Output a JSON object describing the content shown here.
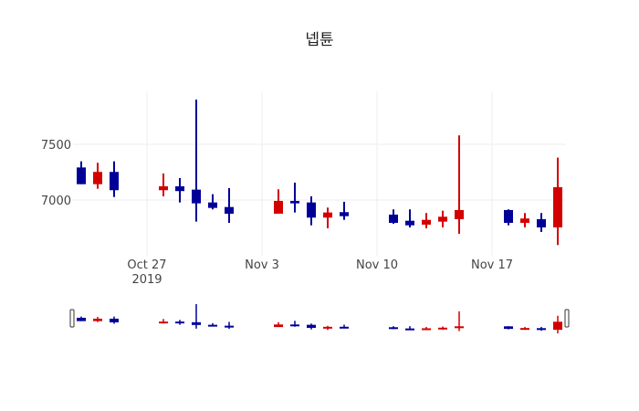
{
  "chart_data": {
    "type": "candlestick",
    "title": "넵튠",
    "xlabel": "",
    "ylabel": "",
    "ylim": [
      6500,
      7975
    ],
    "xlim": [
      "2019-10-22T12:00",
      "2019-11-21T12:00"
    ],
    "grid": true,
    "x_ticks": [
      {
        "date": "2019-10-27",
        "label": "Oct 27",
        "sublabel": "2019"
      },
      {
        "date": "2019-11-03",
        "label": "Nov 3"
      },
      {
        "date": "2019-11-10",
        "label": "Nov 10"
      },
      {
        "date": "2019-11-17",
        "label": "Nov 17"
      }
    ],
    "y_ticks": [
      {
        "value": 7000,
        "label": "7000"
      },
      {
        "value": 7500,
        "label": "7500"
      }
    ],
    "increasing_color": "#d40000",
    "decreasing_color": "#000099",
    "rangeslider": true,
    "candles": [
      {
        "date": "2019-10-23",
        "open": 7292,
        "high": 7347,
        "low": 7142,
        "close": 7142
      },
      {
        "date": "2019-10-24",
        "open": 7142,
        "high": 7334,
        "low": 7101,
        "close": 7252
      },
      {
        "date": "2019-10-25",
        "open": 7252,
        "high": 7347,
        "low": 7027,
        "close": 7088
      },
      {
        "date": "2019-10-28",
        "open": 7088,
        "high": 7238,
        "low": 7033,
        "close": 7123
      },
      {
        "date": "2019-10-29",
        "open": 7123,
        "high": 7197,
        "low": 6978,
        "close": 7080
      },
      {
        "date": "2019-10-30",
        "open": 7093,
        "high": 7900,
        "low": 6806,
        "close": 6970
      },
      {
        "date": "2019-10-31",
        "open": 6978,
        "high": 7052,
        "low": 6916,
        "close": 6929
      },
      {
        "date": "2019-11-01",
        "open": 6937,
        "high": 7107,
        "low": 6795,
        "close": 6877
      },
      {
        "date": "2019-11-04",
        "open": 6877,
        "high": 7096,
        "low": 6877,
        "close": 6992
      },
      {
        "date": "2019-11-05",
        "open": 6992,
        "high": 7156,
        "low": 6888,
        "close": 6970
      },
      {
        "date": "2019-11-06",
        "open": 6978,
        "high": 7033,
        "low": 6773,
        "close": 6842
      },
      {
        "date": "2019-11-07",
        "open": 6842,
        "high": 6932,
        "low": 6746,
        "close": 6888
      },
      {
        "date": "2019-11-08",
        "open": 6891,
        "high": 6984,
        "low": 6822,
        "close": 6855
      },
      {
        "date": "2019-11-11",
        "open": 6869,
        "high": 6916,
        "low": 6787,
        "close": 6795
      },
      {
        "date": "2019-11-12",
        "open": 6814,
        "high": 6916,
        "low": 6754,
        "close": 6773
      },
      {
        "date": "2019-11-13",
        "open": 6779,
        "high": 6883,
        "low": 6746,
        "close": 6822
      },
      {
        "date": "2019-11-14",
        "open": 6806,
        "high": 6904,
        "low": 6754,
        "close": 6850
      },
      {
        "date": "2019-11-15",
        "open": 6828,
        "high": 7580,
        "low": 6697,
        "close": 6910
      },
      {
        "date": "2019-11-18",
        "open": 6910,
        "high": 6916,
        "low": 6773,
        "close": 6795
      },
      {
        "date": "2019-11-19",
        "open": 6795,
        "high": 6883,
        "low": 6754,
        "close": 6834
      },
      {
        "date": "2019-11-20",
        "open": 6828,
        "high": 6883,
        "low": 6713,
        "close": 6754
      },
      {
        "date": "2019-11-21",
        "open": 6754,
        "high": 7380,
        "low": 6596,
        "close": 7115
      }
    ]
  }
}
